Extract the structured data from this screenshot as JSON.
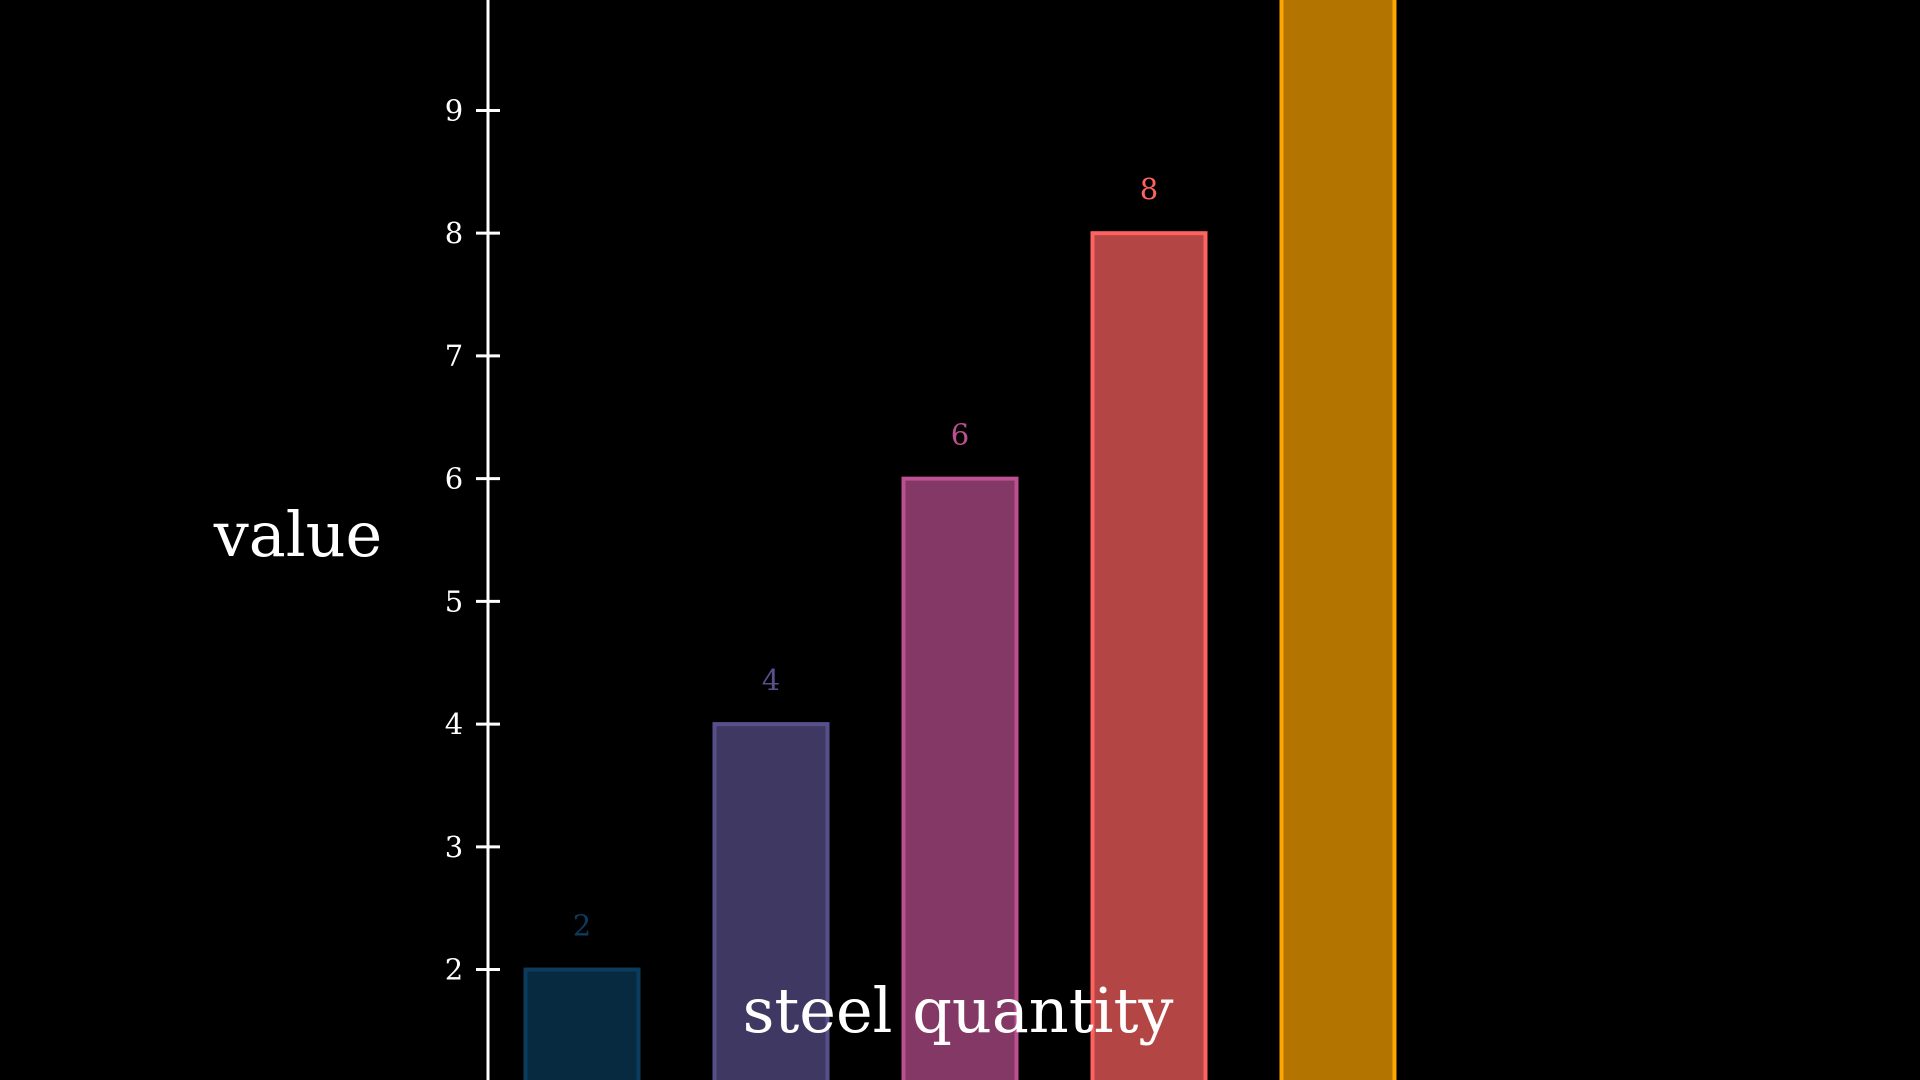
{
  "chart_data": {
    "type": "bar",
    "categories": [
      "",
      "",
      "",
      "",
      ""
    ],
    "values": [
      2,
      4,
      6,
      8,
      10
    ],
    "data_labels": [
      "2",
      "4",
      "6",
      "8",
      ""
    ],
    "colors": [
      "#0b3c5d",
      "#58508d",
      "#bc5090",
      "#ff6361",
      "#ffa600"
    ],
    "title": "",
    "xlabel": "steel quantity",
    "ylabel": "value",
    "y_ticks": [
      2,
      3,
      4,
      5,
      6,
      7,
      8,
      9
    ],
    "ylim": [
      1.1,
      9.9
    ],
    "grid": false,
    "background": "#000000"
  }
}
